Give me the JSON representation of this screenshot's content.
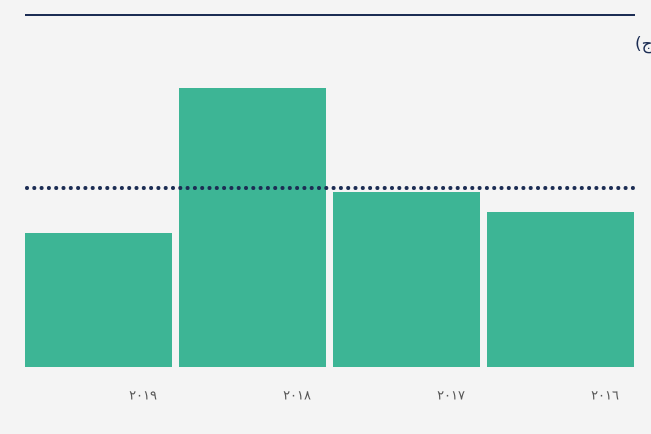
{
  "chart_data": {
    "type": "bar",
    "title": "معدل استخدام المياه (متر مكعب/طن من الإنتاج)",
    "categories": [
      "٢٠١٩",
      "٢٠١٨",
      "٢٠١٧",
      "٢٠١٦"
    ],
    "values": [
      134,
      279,
      175,
      155
    ],
    "color": "#3db595",
    "ylim": [
      0,
      300
    ],
    "reference_line": 179,
    "reference_color": "#1c2d54"
  }
}
